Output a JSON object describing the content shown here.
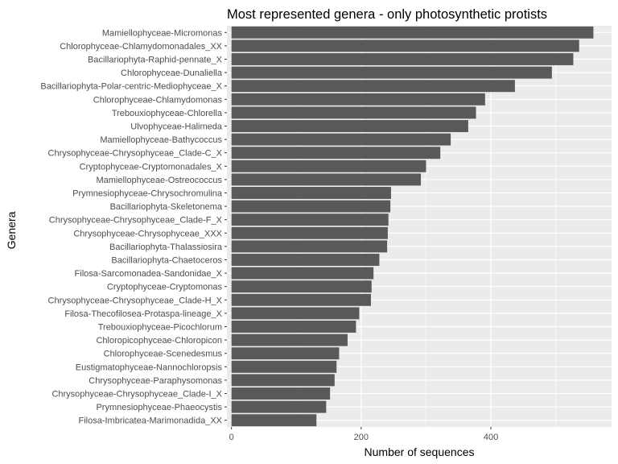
{
  "chart_data": {
    "type": "bar",
    "orientation": "horizontal",
    "title": "Most represented genera - only photosynthetic protists",
    "xlabel": "Number of sequences",
    "ylabel": "Genera",
    "xlim": [
      -7,
      586
    ],
    "xticks": [
      0,
      200,
      400
    ],
    "grid": true,
    "panel_background": "#ebebeb",
    "grid_color": "#ffffff",
    "bar_color": "#595959",
    "categories": [
      "Mamiellophyceae-Micromonas",
      "Chlorophyceae-Chlamydomonadales_XX",
      "Bacillariophyta-Raphid-pennate_X",
      "Chlorophyceae-Dunaliella",
      "Bacillariophyta-Polar-centric-Mediophyceae_X",
      "Chlorophyceae-Chlamydomonas",
      "Trebouxiophyceae-Chlorella",
      "Ulvophyceae-Halimeda",
      "Mamiellophyceae-Bathycoccus",
      "Chrysophyceae-Chrysophyceae_Clade-C_X",
      "Cryptophyceae-Cryptomonadales_X",
      "Mamiellophyceae-Ostreococcus",
      "Prymnesiophyceae-Chrysochromulina",
      "Bacillariophyta-Skeletonema",
      "Chrysophyceae-Chrysophyceae_Clade-F_X",
      "Chrysophyceae-Chrysophyceae_XXX",
      "Bacillariophyta-Thalassiosira",
      "Bacillariophyta-Chaetoceros",
      "Filosa-Sarcomonadea-Sandonidae_X",
      "Cryptophyceae-Cryptomonas",
      "Chrysophyceae-Chrysophyceae_Clade-H_X",
      "Filosa-Thecofilosea-Protaspa-lineage_X",
      "Trebouxiophyceae-Picochlorum",
      "Chloropicophyceae-Chloropicon",
      "Chlorophyceae-Scenedesmus",
      "Eustigmatophyceae-Nannochloropsis",
      "Chrysophyceae-Paraphysomonas",
      "Chrysophyceae-Chrysophyceae_Clade-I_X",
      "Prymnesiophyceae-Phaeocystis",
      "Filosa-Imbricatea-Marimonadida_XX"
    ],
    "values": [
      558,
      536,
      527,
      494,
      437,
      391,
      377,
      365,
      338,
      322,
      300,
      292,
      246,
      245,
      242,
      241,
      240,
      228,
      219,
      216,
      215,
      197,
      192,
      179,
      166,
      162,
      159,
      152,
      146,
      131
    ]
  }
}
